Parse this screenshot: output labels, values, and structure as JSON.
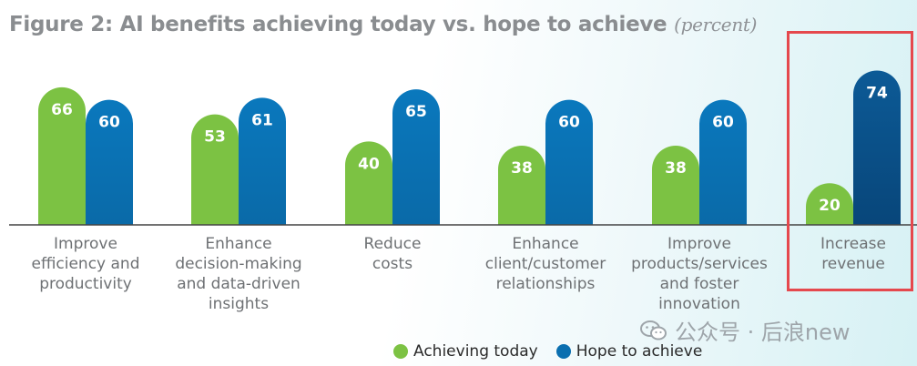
{
  "title": "Figure 2: AI benefits achieving today vs. hope to achieve",
  "title_unit": "(percent)",
  "watermark": "公众号 · 后浪new",
  "colors": {
    "achieving": "#7cc243",
    "hope": "#0a6fb0",
    "hope_dark": "#0b4f86",
    "highlight": "#e5484d",
    "bar_text": "#ffffff",
    "axis": "#444444"
  },
  "chart_data": {
    "type": "bar",
    "categories": [
      [
        "Improve",
        "efficiency and",
        "productivity"
      ],
      [
        "Enhance",
        "decision-making",
        "and data-driven",
        "insights"
      ],
      [
        "Reduce",
        "costs"
      ],
      [
        "Enhance",
        "client/customer",
        "relationships"
      ],
      [
        "Improve",
        "products/services",
        "and foster",
        "innovation"
      ],
      [
        "Increase",
        "revenue"
      ]
    ],
    "series": [
      {
        "name": "Achieving today",
        "values": [
          66,
          53,
          40,
          38,
          38,
          20
        ]
      },
      {
        "name": "Hope to achieve",
        "values": [
          60,
          61,
          65,
          60,
          60,
          74
        ]
      }
    ],
    "ylim": [
      0,
      80
    ],
    "highlighted_category_index": 5,
    "legend_position": "bottom-center",
    "grid": false
  }
}
